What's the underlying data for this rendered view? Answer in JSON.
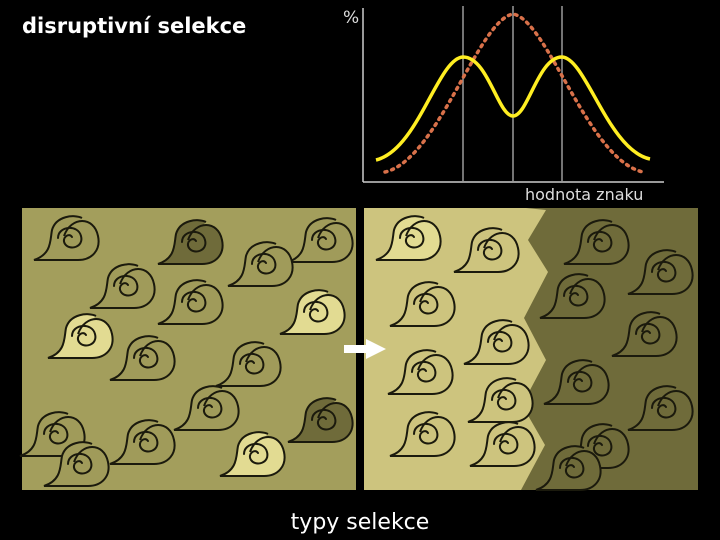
{
  "title": "disruptivní selekce",
  "caption": "typy selekce",
  "graph": {
    "y_axis_label": "%",
    "x_axis_label": "hodnota znaku",
    "curve_colors": {
      "after_selection": "#ffee22",
      "before_selection": "#d9714a"
    }
  },
  "panels": {
    "colors": {
      "left_bg": "#a39e5c",
      "right_light_bg": "#cdc47e",
      "right_dark_bg": "#6f6b3a",
      "shell_light": "#e2db92",
      "shell_medium": "#a09b5a",
      "shell_dark": "#6f6b3a",
      "shell_outline": "#1b1a0d"
    },
    "arrow_icon": "right-arrow-icon"
  }
}
